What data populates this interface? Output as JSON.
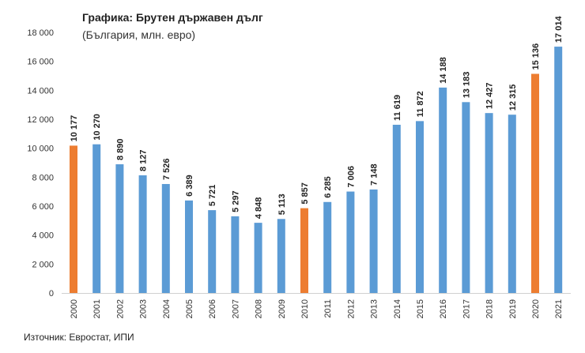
{
  "chart_data": {
    "type": "bar",
    "title": "Графика: Брутен държавен дълг",
    "subtitle": "(България, млн. евро)",
    "source": "Източник: Евростат, ИПИ",
    "xlabel": "",
    "ylabel": "",
    "ylim": [
      0,
      18000
    ],
    "yticks": [
      0,
      2000,
      4000,
      6000,
      8000,
      10000,
      12000,
      14000,
      16000,
      18000
    ],
    "ytick_labels": [
      "0",
      "2 000",
      "4 000",
      "6 000",
      "8 000",
      "10 000",
      "12 000",
      "14 000",
      "16 000",
      "18 000"
    ],
    "categories": [
      "2000",
      "2001",
      "2002",
      "2003",
      "2004",
      "2005",
      "2006",
      "2007",
      "2008",
      "2009",
      "2010",
      "2011",
      "2012",
      "2013",
      "2014",
      "2015",
      "2016",
      "2017",
      "2018",
      "2019",
      "2020",
      "2021"
    ],
    "values": [
      10177,
      10270,
      8890,
      8127,
      7526,
      6389,
      5721,
      5297,
      4848,
      5113,
      5857,
      6285,
      7006,
      7148,
      11619,
      11872,
      14188,
      13183,
      12427,
      12315,
      15136,
      17014
    ],
    "value_labels": [
      "10 177",
      "10 270",
      "8 890",
      "8 127",
      "7 526",
      "6 389",
      "5 721",
      "5 297",
      "4 848",
      "5 113",
      "5 857",
      "6 285",
      "7 006",
      "7 148",
      "11 619",
      "11 872",
      "14 188",
      "13 183",
      "12 427",
      "12 315",
      "15 136",
      "17 014"
    ],
    "highlighted": [
      "2000",
      "2010",
      "2020"
    ],
    "colors": {
      "default": "#5B9BD5",
      "highlight": "#ED7D31"
    },
    "grid": false,
    "legend": "none"
  }
}
